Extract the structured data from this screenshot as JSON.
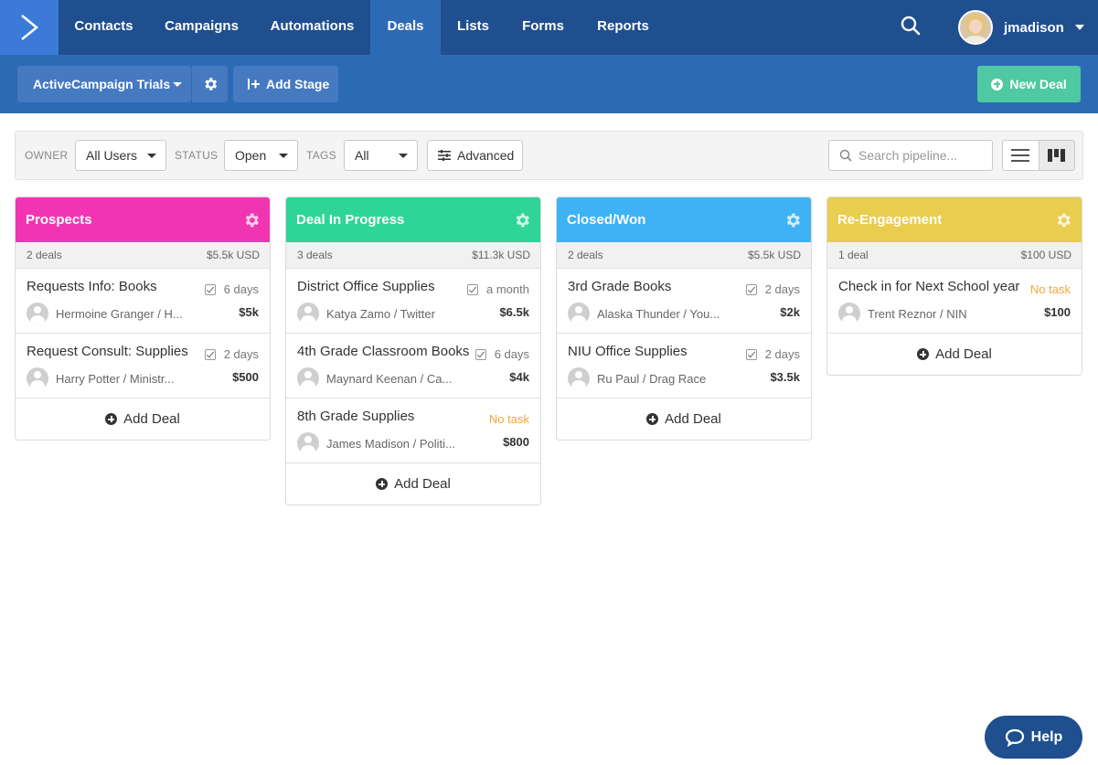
{
  "nav": {
    "items": [
      {
        "label": "Contacts",
        "active": false
      },
      {
        "label": "Campaigns",
        "active": false
      },
      {
        "label": "Automations",
        "active": false
      },
      {
        "label": "Deals",
        "active": true
      },
      {
        "label": "Lists",
        "active": false
      },
      {
        "label": "Forms",
        "active": false
      },
      {
        "label": "Reports",
        "active": false
      }
    ],
    "username": "jmadison"
  },
  "toolbar": {
    "pipeline_label": "ActiveCampaign Trials",
    "add_stage_label": "Add Stage",
    "new_deal_label": "New Deal"
  },
  "filters": {
    "owner_label": "OWNER",
    "owner_value": "All Users",
    "status_label": "STATUS",
    "status_value": "Open",
    "tags_label": "TAGS",
    "tags_value": "All",
    "advanced_label": "Advanced",
    "search_placeholder": "Search pipeline..."
  },
  "stages": [
    {
      "name": "Prospects",
      "color": "#f135b2",
      "count": "2 deals",
      "total": "$5.5k USD",
      "deals": [
        {
          "title": "Requests Info: Books",
          "task": "6 days",
          "has_task": true,
          "person": "Hermoine Granger / H...",
          "value": "$5k"
        },
        {
          "title": "Request Consult: Supplies",
          "task": "2 days",
          "has_task": true,
          "person": "Harry Potter / Ministr...",
          "value": "$500"
        }
      ],
      "add_label": "Add Deal"
    },
    {
      "name": "Deal In Progress",
      "color": "#2fd497",
      "count": "3 deals",
      "total": "$11.3k USD",
      "deals": [
        {
          "title": "District Office Supplies",
          "task": "a month",
          "has_task": true,
          "person": "Katya Zamo / Twitter",
          "value": "$6.5k"
        },
        {
          "title": "4th Grade Classroom Books",
          "task": "6 days",
          "has_task": true,
          "person": "Maynard Keenan / Ca...",
          "value": "$4k"
        },
        {
          "title": "8th Grade Supplies",
          "task": "No task",
          "has_task": false,
          "person": "James Madison / Politi...",
          "value": "$800"
        }
      ],
      "add_label": "Add Deal"
    },
    {
      "name": "Closed/Won",
      "color": "#3eb2f5",
      "count": "2 deals",
      "total": "$5.5k USD",
      "deals": [
        {
          "title": "3rd Grade Books",
          "task": "2 days",
          "has_task": true,
          "person": "Alaska Thunder / You...",
          "value": "$2k"
        },
        {
          "title": "NIU Office Supplies",
          "task": "2 days",
          "has_task": true,
          "person": "Ru Paul / Drag Race",
          "value": "$3.5k"
        }
      ],
      "add_label": "Add Deal"
    },
    {
      "name": "Re-Engagement",
      "color": "#e8cd4f",
      "count": "1 deal",
      "total": "$100 USD",
      "deals": [
        {
          "title": "Check in for Next School year",
          "task": "No task",
          "has_task": false,
          "person": "Trent Reznor / NIN",
          "value": "$100"
        }
      ],
      "add_label": "Add Deal"
    }
  ],
  "help_label": "Help"
}
